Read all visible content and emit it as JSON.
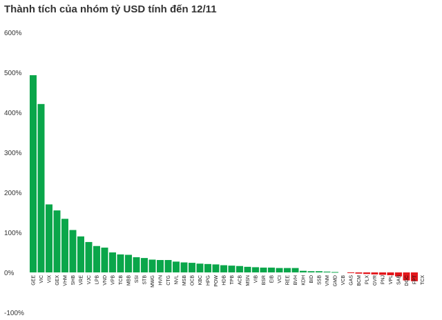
{
  "title": "Thành tích của nhóm tỷ USD tính đến 12/11",
  "chart_data": {
    "type": "bar",
    "title": "Thành tích của nhóm tỷ USD tính đến 12/11",
    "xlabel": "",
    "ylabel": "",
    "ylim": [
      -100,
      600
    ],
    "yticks": [
      -100,
      0,
      100,
      200,
      300,
      400,
      500,
      600
    ],
    "ytick_labels": [
      "-100%",
      "0%",
      "100%",
      "200%",
      "300%",
      "400%",
      "500%",
      "600%"
    ],
    "grid": false,
    "positive_color": "#0aa64a",
    "negative_color": "#e3161b",
    "categories": [
      "GEE",
      "VIC",
      "VIX",
      "GEX",
      "VHM",
      "SHB",
      "VRE",
      "VJC",
      "LPB",
      "VND",
      "VPB",
      "TCB",
      "MBB",
      "SSI",
      "STB",
      "MWG",
      "HVN",
      "CTG",
      "NVL",
      "MSB",
      "OCB",
      "KBC",
      "HPG",
      "POW",
      "HDB",
      "TPB",
      "ACB",
      "MSN",
      "VIB",
      "BSR",
      "EIB",
      "VCI",
      "REE",
      "BVH",
      "KDH",
      "BID",
      "SSB",
      "VNM",
      "GMD",
      "VCB",
      "GAS",
      "BCM",
      "PLX",
      "GVR",
      "PNJ",
      "VPL",
      "SAB",
      "DGC",
      "FPT",
      "TCX"
    ],
    "values": [
      493,
      421,
      170,
      155,
      134,
      106,
      90,
      76,
      66,
      62,
      50,
      45,
      44,
      38,
      36,
      32,
      31,
      31,
      27,
      25,
      24,
      22,
      21,
      20,
      18,
      17,
      16,
      14,
      13,
      12,
      12,
      11,
      11,
      11,
      4,
      3,
      3,
      2,
      1,
      0,
      -1,
      -3,
      -4,
      -5,
      -6,
      -7,
      -10,
      -20,
      -22,
      0
    ]
  }
}
